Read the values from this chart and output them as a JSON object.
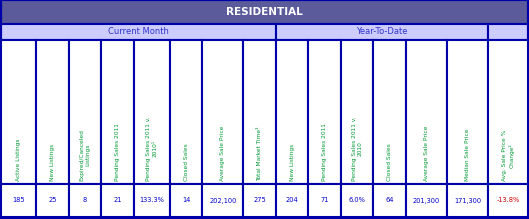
{
  "title": "RESIDENTIAL",
  "title_bg": "#5B5B9B",
  "title_fg": "#FFFFFF",
  "section_bg": "#CCCCFF",
  "section_fg": "#3333CC",
  "header_bg": "#FFFFFF",
  "header_fg": "#009933",
  "data_bg": "#FFFFFF",
  "data_fg": "#0000CC",
  "data_neg_fg": "#CC0000",
  "border_color": "#0000AA",
  "current_month_label": "Current Month",
  "ytd_label": "Year-To-Date",
  "col_headers": [
    "Active Listings",
    "New Listings",
    "Expired/Canceled\nListings",
    "Pending Sales 2011",
    "Pending Sales 2011 v.\n2010¹",
    "Closed Sales",
    "Average Sale Price",
    "Total Market Time³",
    "New Listings",
    "Pending Sales 2011",
    "Pending Sales 2011 v.\n2010",
    "Closed Sales",
    "Average Sale Price",
    "Median Sale Price",
    "Avg. Sale Price %\nChange²"
  ],
  "data_values": [
    "185",
    "25",
    "8",
    "21",
    "133.3%",
    "14",
    "202,100",
    "275",
    "204",
    "71",
    "6.0%",
    "64",
    "201,300",
    "171,300",
    "-13.8%"
  ],
  "n_current_month": 8,
  "n_ytd": 6,
  "n_last": 1,
  "figsize": [
    5.29,
    2.19
  ],
  "dpi": 100
}
